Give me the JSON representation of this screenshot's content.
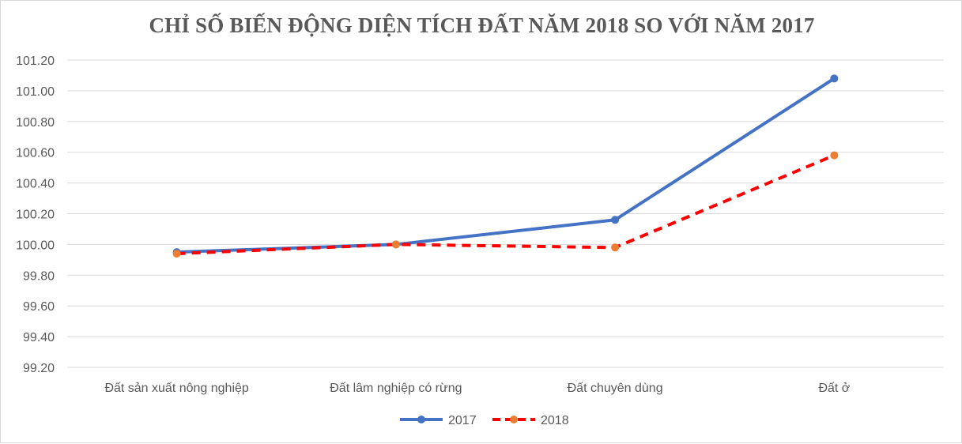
{
  "chart_data": {
    "type": "line",
    "title": "CHỈ SỐ BIẾN ĐỘNG DIỆN TÍCH ĐẤT NĂM 2018 SO VỚI NĂM 2017",
    "categories": [
      "Đất sản xuất nông nghiệp",
      "Đất lâm nghiệp có rừng",
      "Đất chuyên dùng",
      "Đất ở"
    ],
    "ylim": [
      99.2,
      101.2
    ],
    "yticks": [
      "99.20",
      "99.40",
      "99.60",
      "99.80",
      "100.00",
      "100.20",
      "100.40",
      "100.60",
      "100.80",
      "101.00",
      "101.20"
    ],
    "grid": true,
    "legend_position": "bottom",
    "series": [
      {
        "name": "2017",
        "values": [
          99.95,
          100.0,
          100.16,
          101.08
        ],
        "color": "#4472c4",
        "style": "solid"
      },
      {
        "name": "2018",
        "values": [
          99.94,
          100.0,
          99.98,
          100.58
        ],
        "color": "#ff0000",
        "marker_color": "#ed7d31",
        "style": "dashed"
      }
    ]
  }
}
